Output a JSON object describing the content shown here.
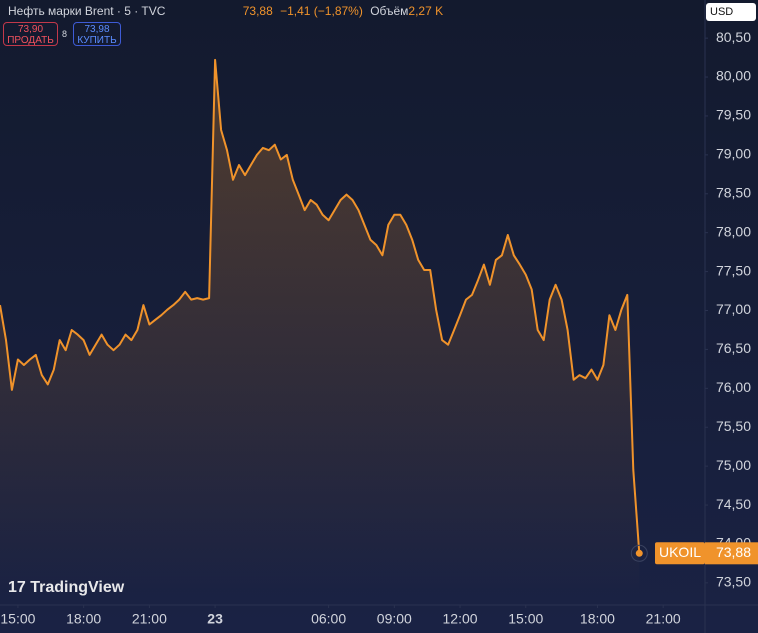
{
  "header": {
    "title": "Нефть марки Brent · 5 · TVC",
    "price": "73,88",
    "change": "−1,41 (−1,87%)",
    "volume_label": "Объём",
    "volume": "2,27 K",
    "sell_price": "73,90",
    "sell_label": "ПРОДАТЬ",
    "spread": "8",
    "buy_price": "73,98",
    "buy_label": "КУПИТЬ",
    "currency": "USD",
    "brand": "TradingView"
  },
  "chart_data": {
    "type": "line",
    "color": "#f0932b",
    "grid": false,
    "symbol": "UKOIL",
    "x": [
      0,
      1,
      2,
      3,
      4,
      5,
      6,
      7,
      8,
      9,
      10,
      11,
      12,
      13,
      14,
      15,
      16,
      17,
      18,
      19,
      20,
      21,
      22,
      23,
      24,
      25,
      26,
      27,
      28,
      29,
      30,
      31,
      32,
      33,
      34,
      35,
      36,
      37,
      38,
      39,
      40,
      41,
      42,
      43,
      44,
      45,
      46,
      47,
      48,
      49,
      50,
      51,
      52,
      53,
      54,
      55,
      56,
      57,
      58,
      59,
      60,
      61,
      62,
      63,
      64,
      65,
      66,
      67,
      68,
      69,
      70,
      71,
      72,
      73,
      74,
      75,
      76,
      77,
      78,
      79,
      80,
      81,
      82,
      83,
      84,
      85,
      86,
      87,
      88,
      89,
      90,
      91,
      92,
      93,
      94,
      95,
      96,
      97,
      98,
      99,
      100,
      101,
      102,
      103,
      104,
      105,
      106,
      107
    ],
    "values": [
      77.07,
      76.62,
      75.98,
      76.37,
      76.3,
      76.37,
      76.43,
      76.17,
      76.05,
      76.24,
      76.62,
      76.49,
      76.75,
      76.69,
      76.62,
      76.43,
      76.56,
      76.69,
      76.56,
      76.49,
      76.56,
      76.69,
      76.62,
      76.75,
      77.07,
      76.82,
      76.88,
      76.94,
      77.01,
      77.07,
      77.14,
      77.24,
      77.14,
      77.16,
      77.14,
      77.16,
      80.22,
      79.32,
      79.06,
      78.68,
      78.87,
      78.74,
      78.87,
      79.0,
      79.09,
      79.06,
      79.13,
      78.94,
      79.0,
      78.68,
      78.49,
      78.29,
      78.42,
      78.36,
      78.23,
      78.16,
      78.29,
      78.42,
      78.49,
      78.42,
      78.29,
      78.1,
      77.91,
      77.84,
      77.71,
      78.1,
      78.23,
      78.23,
      78.1,
      77.91,
      77.65,
      77.52,
      77.52,
      77.01,
      76.62,
      76.56,
      76.75,
      76.94,
      77.14,
      77.2,
      77.39,
      77.59,
      77.33,
      77.65,
      77.71,
      77.97,
      77.71,
      77.59,
      77.46,
      77.27,
      76.75,
      76.62,
      77.14,
      77.33,
      77.14,
      76.75,
      76.11,
      76.17,
      76.13,
      76.24,
      76.11,
      76.3,
      76.94,
      76.75,
      77.01,
      77.2,
      74.95,
      73.88
    ],
    "value_labels": [
      null,
      null,
      null,
      null,
      null,
      null,
      null,
      null,
      null,
      null,
      null,
      null,
      null,
      null,
      null,
      null,
      null,
      null,
      null,
      null,
      null,
      null,
      null,
      null,
      null,
      null,
      null,
      null,
      null,
      null,
      null,
      null,
      null,
      null,
      null,
      null,
      null,
      null,
      null,
      null,
      null,
      null,
      null,
      null,
      null,
      null,
      null,
      null,
      null,
      null,
      null,
      null,
      null,
      null,
      null,
      null,
      null,
      null,
      null,
      null,
      null,
      null,
      null,
      null,
      null,
      null,
      null,
      null,
      null,
      null,
      null,
      null,
      null,
      null,
      null,
      null,
      null,
      null,
      null,
      null,
      null,
      null,
      null,
      null,
      null,
      null,
      null,
      null,
      null,
      null,
      null,
      null,
      null,
      null,
      null,
      null,
      null,
      null,
      null,
      null,
      null,
      null,
      null,
      null,
      null,
      null,
      null,
      "73,88"
    ],
    "xlim": [
      0,
      118
    ],
    "xticks": [
      {
        "value": 3,
        "label": "15:00"
      },
      {
        "value": 14,
        "label": "18:00"
      },
      {
        "value": 25,
        "label": "21:00"
      },
      {
        "value": 36,
        "label": "23"
      },
      {
        "value": 55,
        "label": "06:00"
      },
      {
        "value": 66,
        "label": "09:00"
      },
      {
        "value": 77,
        "label": "12:00"
      },
      {
        "value": 88,
        "label": "15:00"
      },
      {
        "value": 100,
        "label": "18:00"
      },
      {
        "value": 111,
        "label": "21:00"
      }
    ],
    "ylim": [
      73.28,
      80.99
    ],
    "yticks": [
      {
        "value": 73.5,
        "label": "73,50"
      },
      {
        "value": 74,
        "label": "74,00"
      },
      {
        "value": 74.5,
        "label": "74,50"
      },
      {
        "value": 75,
        "label": "75,00"
      },
      {
        "value": 75.5,
        "label": "75,50"
      },
      {
        "value": 76,
        "label": "76,00"
      },
      {
        "value": 76.5,
        "label": "76,50"
      },
      {
        "value": 77,
        "label": "77,00"
      },
      {
        "value": 77.5,
        "label": "77,50"
      },
      {
        "value": 78,
        "label": "78,00"
      },
      {
        "value": 78.5,
        "label": "78,50"
      },
      {
        "value": 79,
        "label": "79,00"
      },
      {
        "value": 79.5,
        "label": "79,50"
      },
      {
        "value": 80,
        "label": "80,00"
      },
      {
        "value": 80.5,
        "label": "80,50"
      }
    ]
  }
}
